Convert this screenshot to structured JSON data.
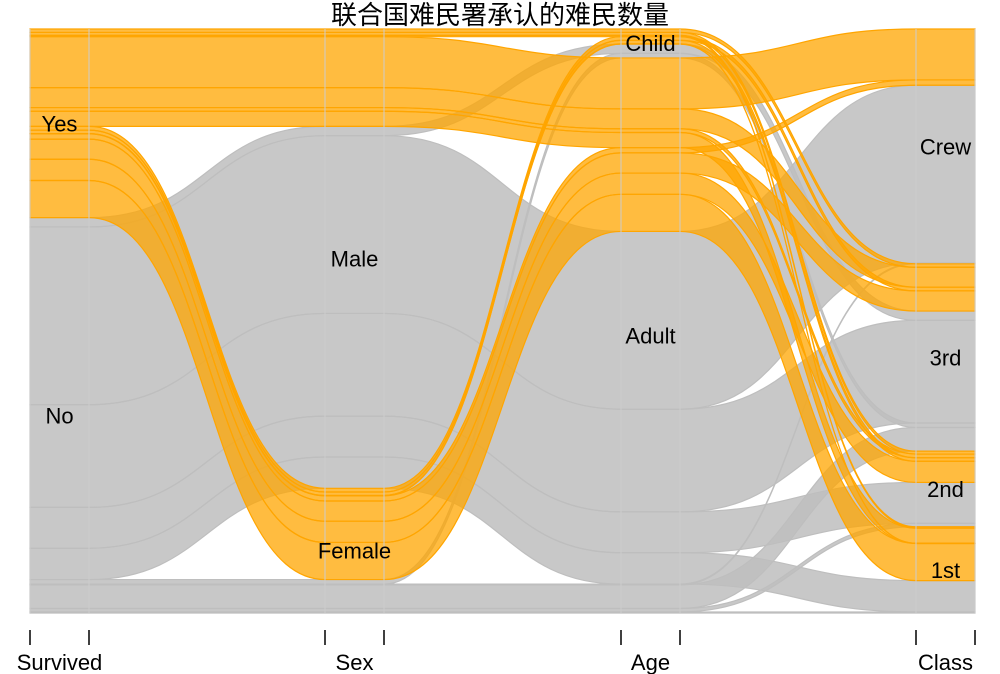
{
  "chart_data": {
    "type": "parallel-sets",
    "title": "联合国难民署承认的难民数量",
    "dimensions": [
      {
        "name": "Survived",
        "categories": [
          "Yes",
          "No"
        ]
      },
      {
        "name": "Sex",
        "categories": [
          "Male",
          "Female"
        ]
      },
      {
        "name": "Age",
        "categories": [
          "Child",
          "Adult"
        ]
      },
      {
        "name": "Class",
        "categories": [
          "Crew",
          "3rd",
          "2nd",
          "1st"
        ]
      }
    ],
    "highlight": {
      "dimension": "Survived",
      "category": "Yes"
    },
    "colors": {
      "highlight": "#ffa500",
      "base": "#bebebe",
      "axis": "#cccccc"
    },
    "flows": [
      {
        "survived": "Yes",
        "sex": "Male",
        "age": "Adult",
        "class": "Crew",
        "count": 192
      },
      {
        "survived": "Yes",
        "sex": "Male",
        "age": "Adult",
        "class": "3rd",
        "count": 75
      },
      {
        "survived": "Yes",
        "sex": "Male",
        "age": "Adult",
        "class": "2nd",
        "count": 14
      },
      {
        "survived": "Yes",
        "sex": "Male",
        "age": "Adult",
        "class": "1st",
        "count": 57
      },
      {
        "survived": "Yes",
        "sex": "Male",
        "age": "Child",
        "class": "3rd",
        "count": 13
      },
      {
        "survived": "Yes",
        "sex": "Male",
        "age": "Child",
        "class": "2nd",
        "count": 11
      },
      {
        "survived": "Yes",
        "sex": "Male",
        "age": "Child",
        "class": "1st",
        "count": 5
      },
      {
        "survived": "Yes",
        "sex": "Female",
        "age": "Adult",
        "class": "Crew",
        "count": 20
      },
      {
        "survived": "Yes",
        "sex": "Female",
        "age": "Adult",
        "class": "3rd",
        "count": 76
      },
      {
        "survived": "Yes",
        "sex": "Female",
        "age": "Adult",
        "class": "2nd",
        "count": 80
      },
      {
        "survived": "Yes",
        "sex": "Female",
        "age": "Adult",
        "class": "1st",
        "count": 140
      },
      {
        "survived": "Yes",
        "sex": "Female",
        "age": "Child",
        "class": "3rd",
        "count": 14
      },
      {
        "survived": "Yes",
        "sex": "Female",
        "age": "Child",
        "class": "2nd",
        "count": 13
      },
      {
        "survived": "Yes",
        "sex": "Female",
        "age": "Child",
        "class": "1st",
        "count": 1
      },
      {
        "survived": "No",
        "sex": "Male",
        "age": "Adult",
        "class": "Crew",
        "count": 670
      },
      {
        "survived": "No",
        "sex": "Male",
        "age": "Adult",
        "class": "3rd",
        "count": 387
      },
      {
        "survived": "No",
        "sex": "Male",
        "age": "Adult",
        "class": "2nd",
        "count": 154
      },
      {
        "survived": "No",
        "sex": "Male",
        "age": "Adult",
        "class": "1st",
        "count": 118
      },
      {
        "survived": "No",
        "sex": "Male",
        "age": "Child",
        "class": "3rd",
        "count": 35
      },
      {
        "survived": "No",
        "sex": "Female",
        "age": "Adult",
        "class": "Crew",
        "count": 3
      },
      {
        "survived": "No",
        "sex": "Female",
        "age": "Adult",
        "class": "3rd",
        "count": 89
      },
      {
        "survived": "No",
        "sex": "Female",
        "age": "Adult",
        "class": "2nd",
        "count": 13
      },
      {
        "survived": "No",
        "sex": "Female",
        "age": "Adult",
        "class": "1st",
        "count": 4
      },
      {
        "survived": "No",
        "sex": "Female",
        "age": "Child",
        "class": "3rd",
        "count": 17
      }
    ]
  }
}
